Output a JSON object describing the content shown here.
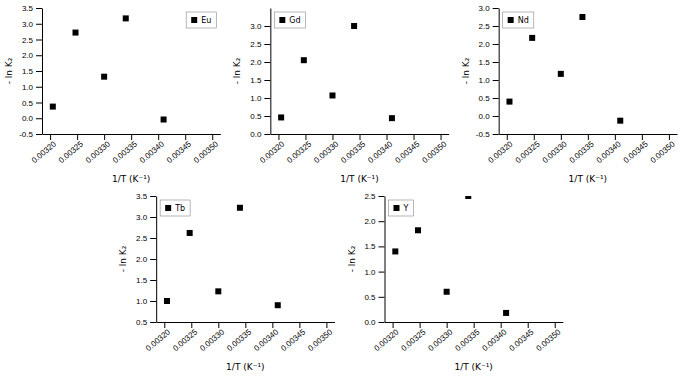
{
  "chart_data": [
    {
      "type": "scatter",
      "x_label": "1/T (K⁻¹)",
      "y_label": "- ln K₂",
      "x": [
        0.003205,
        0.003247,
        0.0033,
        0.00334,
        0.00341
      ],
      "series": [
        {
          "name": "Eu",
          "color": "black",
          "marker": "square",
          "values": [
            0.37,
            2.72,
            1.32,
            3.17,
            -0.04
          ]
        }
      ],
      "xlim": [
        0.003185,
        0.003515
      ],
      "xticks": [
        {
          "value": 0.0032,
          "label": "0.00320"
        },
        {
          "value": 0.00325,
          "label": "0.00325"
        },
        {
          "value": 0.0033,
          "label": "0.00330"
        },
        {
          "value": 0.00335,
          "label": "0.00335"
        },
        {
          "value": 0.0034,
          "label": "0.00340"
        },
        {
          "value": 0.00345,
          "label": "0.00345"
        },
        {
          "value": 0.0035,
          "label": "0.00350"
        }
      ],
      "ylim": [
        -0.5,
        3.5
      ],
      "yticks": [
        -0.5,
        {
          "value": 0.0,
          "label": "0.0"
        },
        0.5,
        {
          "value": 1.0,
          "label": "1.0"
        },
        1.5,
        {
          "value": 2.0,
          "label": "2.0"
        },
        2.5,
        {
          "value": 3.0,
          "label": "3.0"
        },
        3.5
      ],
      "legend": "upper right"
    },
    {
      "type": "scatter",
      "x_label": "1/T (K⁻¹)",
      "y_label": "- ln K₂",
      "x": [
        0.003205,
        0.003247,
        0.0033,
        0.00334,
        0.00341
      ],
      "series": [
        {
          "name": "Gd",
          "color": "black",
          "marker": "square",
          "values": [
            0.46,
            2.05,
            1.07,
            3.0,
            0.44
          ]
        }
      ],
      "xlim": [
        0.003185,
        0.003515
      ],
      "xticks": [
        {
          "value": 0.0032,
          "label": "0.00320"
        },
        {
          "value": 0.00325,
          "label": "0.00325"
        },
        {
          "value": 0.0033,
          "label": "0.00330"
        },
        {
          "value": 0.00335,
          "label": "0.00335"
        },
        {
          "value": 0.0034,
          "label": "0.00340"
        },
        {
          "value": 0.00345,
          "label": "0.00345"
        },
        {
          "value": 0.0035,
          "label": "0.00350"
        }
      ],
      "ylim": [
        0.0,
        3.5
      ],
      "yticks": [
        {
          "value": 0.0,
          "label": "0.0"
        },
        0.5,
        {
          "value": 1.0,
          "label": "1.0"
        },
        1.5,
        {
          "value": 2.0,
          "label": "2.0"
        },
        2.5,
        {
          "value": 3.0,
          "label": "3.0"
        }
      ],
      "legend": "upper left"
    },
    {
      "type": "scatter",
      "x_label": "1/T (K⁻¹)",
      "y_label": "- ln K₂",
      "x": [
        0.003205,
        0.003247,
        0.0033,
        0.00334,
        0.00341
      ],
      "series": [
        {
          "name": "Nd",
          "color": "black",
          "marker": "square",
          "values": [
            0.4,
            2.17,
            1.17,
            2.75,
            -0.13
          ]
        }
      ],
      "xlim": [
        0.003185,
        0.003515
      ],
      "xticks": [
        {
          "value": 0.0032,
          "label": "0.00320"
        },
        {
          "value": 0.00325,
          "label": "0.00325"
        },
        {
          "value": 0.0033,
          "label": "0.00330"
        },
        {
          "value": 0.00335,
          "label": "0.00335"
        },
        {
          "value": 0.0034,
          "label": "0.00340"
        },
        {
          "value": 0.00345,
          "label": "0.00345"
        },
        {
          "value": 0.0035,
          "label": "0.00350"
        }
      ],
      "ylim": [
        -0.5,
        3.0
      ],
      "yticks": [
        -0.5,
        {
          "value": 0.0,
          "label": "0.0"
        },
        0.5,
        {
          "value": 1.0,
          "label": "1.0"
        },
        1.5,
        {
          "value": 2.0,
          "label": "2.0"
        },
        2.5,
        {
          "value": 3.0,
          "label": "3.0"
        }
      ],
      "legend": "upper left"
    },
    {
      "type": "scatter",
      "x_label": "1/T (K⁻¹)",
      "y_label": "- ln K₂",
      "x": [
        0.003205,
        0.003247,
        0.0033,
        0.00334,
        0.00341
      ],
      "series": [
        {
          "name": "Tb",
          "color": "black",
          "marker": "square",
          "values": [
            1.0,
            2.62,
            1.23,
            3.22,
            0.9
          ]
        }
      ],
      "xlim": [
        0.003185,
        0.003515
      ],
      "xticks": [
        {
          "value": 0.0032,
          "label": "0.00320"
        },
        {
          "value": 0.00325,
          "label": "0.00325"
        },
        {
          "value": 0.0033,
          "label": "0.00330"
        },
        {
          "value": 0.00335,
          "label": "0.00335"
        },
        {
          "value": 0.0034,
          "label": "0.00340"
        },
        {
          "value": 0.00345,
          "label": "0.00345"
        },
        {
          "value": 0.0035,
          "label": "0.00350"
        }
      ],
      "ylim": [
        0.5,
        3.5
      ],
      "yticks": [
        0.5,
        {
          "value": 1.0,
          "label": "1.0"
        },
        1.5,
        {
          "value": 2.0,
          "label": "2.0"
        },
        2.5,
        {
          "value": 3.0,
          "label": "3.0"
        },
        3.5
      ],
      "legend": "upper left"
    },
    {
      "type": "scatter",
      "x_label": "1/T (K⁻¹)",
      "y_label": "- ln K₂",
      "x": [
        0.003205,
        0.003247,
        0.0033,
        0.00334,
        0.00341
      ],
      "series": [
        {
          "name": "Y",
          "color": "black",
          "marker": "square",
          "values": [
            1.4,
            1.82,
            0.6,
            2.5,
            0.18
          ]
        }
      ],
      "xlim": [
        0.003185,
        0.003515
      ],
      "xticks": [
        {
          "value": 0.0032,
          "label": "0.00320"
        },
        {
          "value": 0.00325,
          "label": "0.00325"
        },
        {
          "value": 0.0033,
          "label": "0.00330"
        },
        {
          "value": 0.00335,
          "label": "0.00335"
        },
        {
          "value": 0.0034,
          "label": "0.00340"
        },
        {
          "value": 0.00345,
          "label": "0.00345"
        },
        {
          "value": 0.0035,
          "label": "0.00350"
        }
      ],
      "ylim": [
        0.0,
        2.5
      ],
      "yticks": [
        {
          "value": 0.0,
          "label": "0.0"
        },
        0.5,
        {
          "value": 1.0,
          "label": "1.0"
        },
        1.5,
        {
          "value": 2.0,
          "label": "2.0"
        },
        2.5
      ],
      "legend": "upper left"
    }
  ]
}
